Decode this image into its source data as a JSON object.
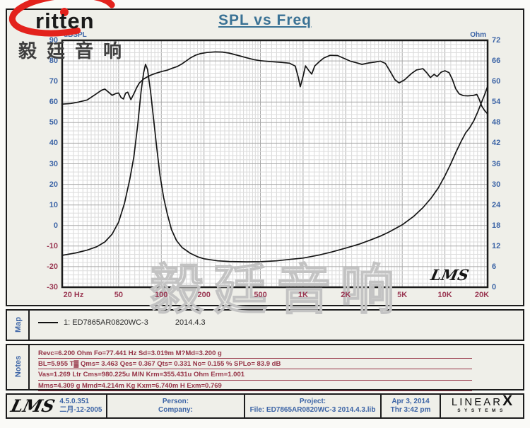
{
  "title": "SPL vs Freq",
  "brand": {
    "logo_word": "ritten",
    "logo_accent_color": "#e3221c",
    "cn_name": "毅廷音响",
    "watermark": "毅廷音响"
  },
  "chart_data": {
    "type": "line",
    "title": "SPL vs Freq",
    "x_axis": {
      "scale": "log",
      "min": 20,
      "max": 20000,
      "ticks": [
        {
          "v": 20,
          "label": "20 Hz"
        },
        {
          "v": 50,
          "label": "50"
        },
        {
          "v": 100,
          "label": "100"
        },
        {
          "v": 200,
          "label": "200"
        },
        {
          "v": 500,
          "label": "500"
        },
        {
          "v": 1000,
          "label": "1K"
        },
        {
          "v": 2000,
          "label": "2K"
        },
        {
          "v": 5000,
          "label": "5K"
        },
        {
          "v": 10000,
          "label": "10K"
        },
        {
          "v": 20000,
          "label": "20K"
        }
      ]
    },
    "y_left": {
      "label": "dBSPL",
      "min": -30,
      "max": 90,
      "step": 10
    },
    "y_right": {
      "label": "Ohm",
      "min": 0,
      "max": 72,
      "step": 6
    },
    "grid": true,
    "inplot_logo": "LMS",
    "series": [
      {
        "name": "1: ED7865AR0820WC-3",
        "axis": "left",
        "unit": "dB",
        "points": [
          [
            20,
            59
          ],
          [
            23,
            59.3
          ],
          [
            26,
            60
          ],
          [
            30,
            61
          ],
          [
            34,
            63.5
          ],
          [
            38,
            65.8
          ],
          [
            40,
            66.3
          ],
          [
            43,
            64.5
          ],
          [
            45,
            63.3
          ],
          [
            48,
            64.2
          ],
          [
            50,
            64.4
          ],
          [
            52,
            62.2
          ],
          [
            54,
            61.5
          ],
          [
            56,
            64.3
          ],
          [
            58,
            64.8
          ],
          [
            61,
            61.2
          ],
          [
            64,
            64
          ],
          [
            67,
            67
          ],
          [
            70,
            69.3
          ],
          [
            75,
            71.2
          ],
          [
            80,
            72.3
          ],
          [
            85,
            73.2
          ],
          [
            90,
            73.8
          ],
          [
            100,
            74.8
          ],
          [
            110,
            75.5
          ],
          [
            120,
            76.5
          ],
          [
            130,
            77.3
          ],
          [
            140,
            78.6
          ],
          [
            150,
            80
          ],
          [
            160,
            81.4
          ],
          [
            175,
            82.8
          ],
          [
            190,
            83.6
          ],
          [
            210,
            84.1
          ],
          [
            240,
            84.4
          ],
          [
            270,
            84.3
          ],
          [
            300,
            83.8
          ],
          [
            350,
            82.6
          ],
          [
            400,
            81.5
          ],
          [
            450,
            80.6
          ],
          [
            500,
            80.1
          ],
          [
            600,
            79.6
          ],
          [
            700,
            79.3
          ],
          [
            800,
            78.9
          ],
          [
            880,
            77.5
          ],
          [
            925,
            72
          ],
          [
            955,
            67.4
          ],
          [
            1000,
            72.5
          ],
          [
            1040,
            77.6
          ],
          [
            1100,
            75.2
          ],
          [
            1150,
            73.6
          ],
          [
            1210,
            77.6
          ],
          [
            1300,
            79.6
          ],
          [
            1400,
            81.4
          ],
          [
            1550,
            82.7
          ],
          [
            1750,
            82.6
          ],
          [
            1950,
            81.2
          ],
          [
            2150,
            79.9
          ],
          [
            2350,
            79.2
          ],
          [
            2600,
            78.3
          ],
          [
            2900,
            79
          ],
          [
            3200,
            79.4
          ],
          [
            3500,
            79.9
          ],
          [
            3800,
            78.8
          ],
          [
            4100,
            75
          ],
          [
            4450,
            70.8
          ],
          [
            4750,
            69.3
          ],
          [
            5200,
            70.8
          ],
          [
            5800,
            73.8
          ],
          [
            6300,
            75.6
          ],
          [
            7000,
            76.2
          ],
          [
            7500,
            74
          ],
          [
            7900,
            71.9
          ],
          [
            8400,
            73.5
          ],
          [
            8800,
            72.4
          ],
          [
            9400,
            74.5
          ],
          [
            10000,
            75.2
          ],
          [
            10700,
            74.3
          ],
          [
            11300,
            71
          ],
          [
            11900,
            66.5
          ],
          [
            12600,
            64
          ],
          [
            13500,
            63.1
          ],
          [
            14500,
            63
          ],
          [
            15800,
            63.2
          ],
          [
            16800,
            63.7
          ],
          [
            17400,
            61.5
          ],
          [
            18200,
            58
          ],
          [
            19000,
            56
          ],
          [
            20000,
            54.2
          ]
        ]
      },
      {
        "name": "impedance",
        "axis": "right",
        "unit": "Ohm",
        "points": [
          [
            20,
            9.3
          ],
          [
            25,
            10
          ],
          [
            30,
            10.8
          ],
          [
            35,
            11.8
          ],
          [
            40,
            13.2
          ],
          [
            45,
            15.5
          ],
          [
            50,
            19
          ],
          [
            55,
            24.5
          ],
          [
            60,
            31.5
          ],
          [
            64,
            38
          ],
          [
            68,
            47
          ],
          [
            72,
            57
          ],
          [
            75,
            62.5
          ],
          [
            77.4,
            65
          ],
          [
            80,
            63.5
          ],
          [
            84,
            57
          ],
          [
            88,
            49.5
          ],
          [
            93,
            40.5
          ],
          [
            98,
            32.5
          ],
          [
            104,
            26
          ],
          [
            110,
            21.5
          ],
          [
            118,
            16.8
          ],
          [
            128,
            13.6
          ],
          [
            140,
            11.6
          ],
          [
            160,
            9.9
          ],
          [
            180,
            8.9
          ],
          [
            200,
            8.3
          ],
          [
            250,
            7.7
          ],
          [
            300,
            7.5
          ],
          [
            400,
            7.4
          ],
          [
            500,
            7.45
          ],
          [
            650,
            7.7
          ],
          [
            800,
            8.1
          ],
          [
            1000,
            8.5
          ],
          [
            1300,
            9.4
          ],
          [
            1600,
            10.3
          ],
          [
            2000,
            11.4
          ],
          [
            2500,
            12.6
          ],
          [
            3000,
            13.8
          ],
          [
            3500,
            14.9
          ],
          [
            4000,
            16
          ],
          [
            5000,
            18.2
          ],
          [
            6000,
            20.6
          ],
          [
            7000,
            23.2
          ],
          [
            8000,
            26
          ],
          [
            9000,
            29
          ],
          [
            10000,
            32.5
          ],
          [
            11000,
            36
          ],
          [
            12000,
            39.5
          ],
          [
            13000,
            42.5
          ],
          [
            14000,
            45
          ],
          [
            15000,
            46.6
          ],
          [
            16000,
            48.6
          ],
          [
            17000,
            51
          ],
          [
            18000,
            53.6
          ],
          [
            19000,
            56
          ],
          [
            20000,
            58.6
          ]
        ]
      }
    ]
  },
  "map": {
    "label": "Map",
    "legend_name": "1: ED7865AR0820WC-3",
    "legend_date": "2014.4.3"
  },
  "notes": {
    "label": "Notes",
    "lines": [
      "Revc=6.200 Ohm  Fo=77.441 Hz  Sd=3.019m M?Md=3.200 g",
      "BL=5.955 T▓  Qms= 3.463  Qes= 0.367  Qts= 0.331  No= 0.155 %  SPLo= 83.9 dB",
      "Vas=1.269 Ltr  Cms=980.225u M/N  Krm=355.431u Ohm  Erm=1.001",
      "Mms=4.309 g  Mmd=4.214m Kg  Kxm=6.740m H  Exm=0.769"
    ]
  },
  "footer": {
    "lms_logo": "LMS",
    "version": "4.5.0.351",
    "version_date": "二月-12-2005",
    "person_label": "Person:",
    "company_label": "Company:",
    "project_label": "Project:",
    "file_line": "File: ED7865AR0820WC-3   2014.4.3.lib",
    "date": "Apr  3, 2014",
    "time": "Thr  3:42 pm",
    "brand_main": "LINEAR",
    "brand_x": "X",
    "brand_sub": "SYSTEMS"
  }
}
